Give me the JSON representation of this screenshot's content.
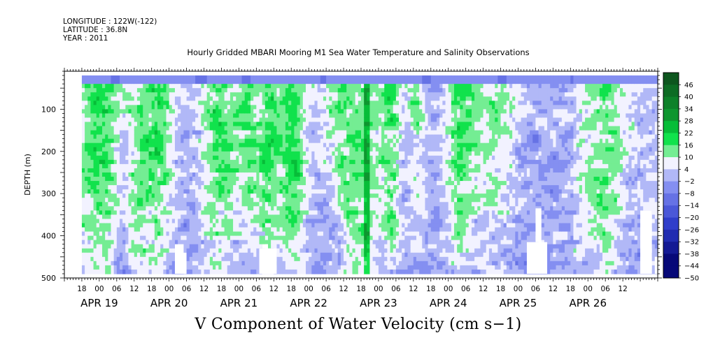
{
  "header": {
    "longitude": "LONGITUDE : 122W(-122)",
    "latitude": "LATITUDE : 36.8N",
    "year": "YEAR : 2011"
  },
  "chart_data": {
    "type": "heatmap",
    "title": "Hourly Gridded MBARI Mooring M1 Sea Water Temperature and Salinity Observations",
    "variable_label": "V Component of Water Velocity (cm s−1)",
    "ylabel": "DEPTH (m)",
    "y_reversed": true,
    "ylim": [
      500,
      10
    ],
    "yticks": [
      100,
      200,
      300,
      400,
      500
    ],
    "x_range_hours": [
      0,
      204
    ],
    "x_start": "APR 19 12:00",
    "x_hour_ticks": [
      "18",
      "00",
      "06",
      "12",
      "18",
      "00",
      "06",
      "12",
      "18",
      "00",
      "06",
      "12",
      "18",
      "00",
      "06",
      "12",
      "18",
      "00",
      "06",
      "12",
      "18",
      "00",
      "06",
      "12",
      "18",
      "00",
      "06",
      "12",
      "18",
      "00",
      "06",
      "12"
    ],
    "x_day_labels": [
      "APR 19",
      "APR 20",
      "APR 21",
      "APR 22",
      "APR 23",
      "APR 24",
      "APR 25",
      "APR 26"
    ],
    "data_depth_range": [
      20,
      490
    ],
    "colorbar": {
      "levels": [
        -50,
        -44,
        -38,
        -32,
        -26,
        -20,
        -14,
        -8,
        -2,
        4,
        10,
        16,
        22,
        28,
        34,
        40,
        46
      ],
      "labels": [
        "46",
        "40",
        "34",
        "28",
        "22",
        "16",
        "10",
        "4",
        "−2",
        "−8",
        "−14",
        "−20",
        "−26",
        "−32",
        "−38",
        "−44",
        "−50"
      ],
      "low_color": "#00006a",
      "mid_color": "#f2f2ff",
      "high_color": "#0c3d17",
      "green_color": "#00e040",
      "blue_color": "#7c88f0"
    },
    "field_features": {
      "surface_layer": {
        "depth_max": 40,
        "value": -12
      },
      "green_upwelling_bands_hours": [
        [
          5,
          18
        ],
        [
          22,
          40
        ],
        [
          48,
          60
        ],
        [
          60,
          66
        ],
        [
          66,
          76
        ],
        [
          76,
          82
        ],
        [
          88,
          108
        ],
        [
          110,
          115
        ],
        [
          118,
          124
        ],
        [
          132,
          140
        ],
        [
          140,
          156
        ],
        [
          180,
          196
        ]
      ],
      "strong_green_streak_hour": 104,
      "blue_bands_hours": [
        [
          18,
          22
        ],
        [
          36,
          48
        ],
        [
          58,
          66
        ],
        [
          84,
          96
        ],
        [
          114,
          126
        ],
        [
          140,
          170
        ],
        [
          190,
          200
        ]
      ],
      "missing_data_blocks": [
        {
          "x": [
            38,
            41
          ],
          "depth": [
            420,
            490
          ]
        },
        {
          "x": [
            40,
            42
          ],
          "depth": [
            440,
            490
          ]
        },
        {
          "x": [
            67,
            73
          ],
          "depth": [
            430,
            490
          ]
        },
        {
          "x": [
            68,
            70
          ],
          "depth": [
            420,
            430
          ]
        },
        {
          "x": [
            159,
            166
          ],
          "depth": [
            415,
            490
          ]
        },
        {
          "x": [
            162,
            164
          ],
          "depth": [
            335,
            415
          ]
        },
        {
          "x": [
            198,
            202
          ],
          "depth": [
            340,
            490
          ]
        },
        {
          "x": [
            203,
            204
          ],
          "depth": [
            450,
            490
          ]
        }
      ]
    }
  }
}
